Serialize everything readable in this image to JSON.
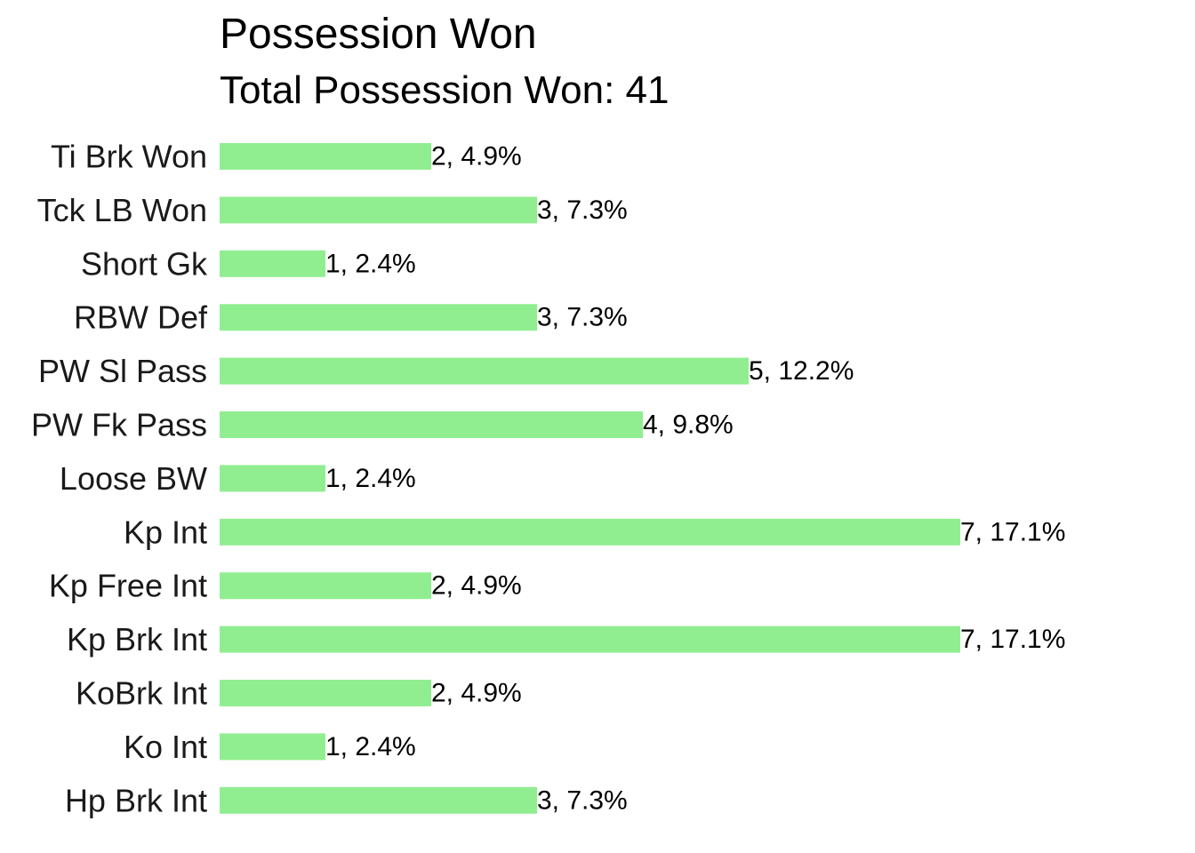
{
  "chart_data": {
    "type": "bar",
    "orientation": "horizontal",
    "title": "Possession Won",
    "subtitle": "Total Possession Won: 41",
    "categories": [
      "Ti Brk Won",
      "Tck LB Won",
      "Short Gk",
      "RBW Def",
      "PW Sl Pass",
      "PW Fk Pass",
      "Loose BW",
      "Kp Int",
      "Kp Free Int",
      "Kp Brk Int",
      "KoBrk Int",
      "Ko Int",
      "Hp Brk Int"
    ],
    "values": [
      2,
      3,
      1,
      3,
      5,
      4,
      1,
      7,
      2,
      7,
      2,
      1,
      3
    ],
    "data_labels": [
      "2, 4.9%",
      "3, 7.3%",
      "1, 2.4%",
      "3, 7.3%",
      "5, 12.2%",
      "4, 9.8%",
      "1, 2.4%",
      "7, 17.1%",
      "2, 4.9%",
      "7, 17.1%",
      "2, 4.9%",
      "1, 2.4%",
      "3, 7.3%"
    ],
    "xlim": [
      0,
      7
    ],
    "xlabel": "",
    "ylabel": "",
    "grid": false,
    "legend": "none",
    "bar_color": "#90ee90"
  }
}
